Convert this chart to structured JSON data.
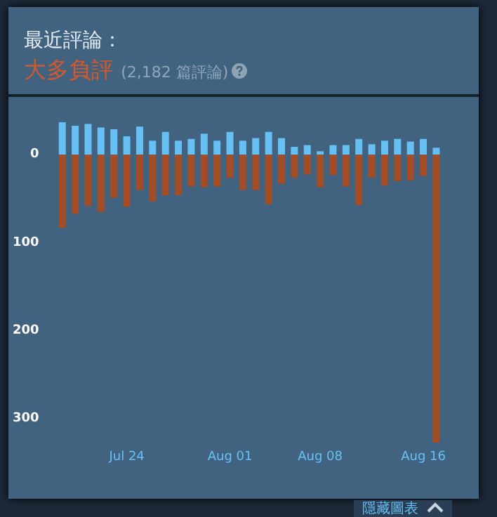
{
  "chart_data": {
    "type": "bar",
    "title": "最近評論：",
    "subtitle": "大多負評",
    "annotations": [
      "(2,182 篇評論)",
      "隱藏圖表"
    ],
    "categories": [
      null,
      null,
      null,
      null,
      null,
      "Jul 24",
      null,
      null,
      null,
      null,
      null,
      null,
      null,
      "Aug 01",
      null,
      null,
      null,
      null,
      null,
      null,
      "Aug 08",
      null,
      null,
      null,
      null,
      null,
      null,
      null,
      "Aug 16",
      null
    ],
    "series": [
      {
        "color": "#66c0f4",
        "values": [
          37,
          33,
          35,
          31,
          29,
          21,
          32,
          16,
          26,
          16,
          18,
          24,
          16,
          26,
          16,
          19,
          26,
          19,
          9,
          11,
          4,
          11,
          11,
          18,
          12,
          16,
          18,
          15,
          18,
          8
        ]
      },
      {
        "color": "#a34c25",
        "values": [
          -83,
          -67,
          -58,
          -65,
          -49,
          -59,
          -40,
          -53,
          -46,
          -46,
          -36,
          -37,
          -36,
          -26,
          -40,
          -40,
          -56,
          -33,
          -26,
          -22,
          -37,
          -23,
          -36,
          -57,
          -26,
          -35,
          -30,
          -29,
          -24,
          -327
        ]
      }
    ],
    "stacked": true,
    "ylim": [
      -327,
      37
    ],
    "yticks": [
      0,
      {
        "value": -100,
        "label": "100"
      },
      {
        "value": -200,
        "label": "200"
      },
      {
        "value": -300,
        "label": "300"
      }
    ],
    "grid": false
  }
}
